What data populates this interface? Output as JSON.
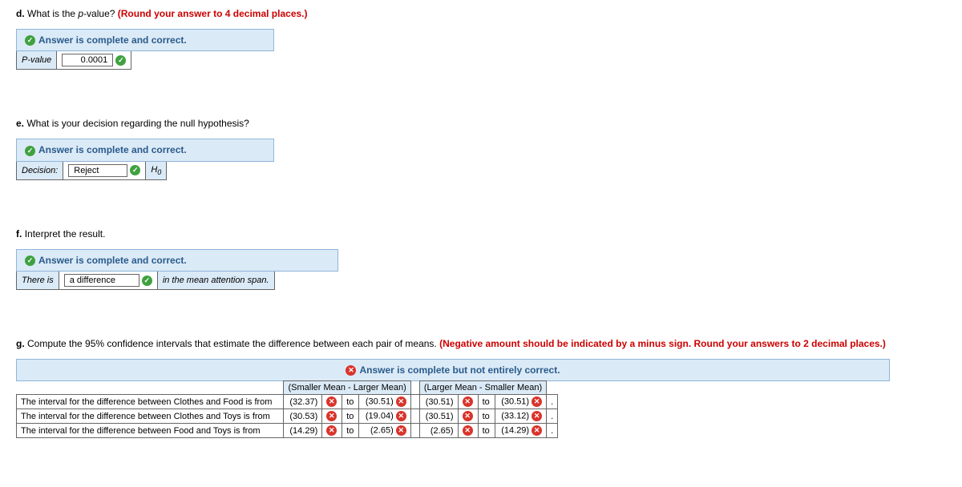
{
  "banners": {
    "correct": "Answer is complete and correct.",
    "partial": "Answer is complete but not entirely correct."
  },
  "d": {
    "letter": "d.",
    "prompt": "What is the ",
    "prompt_em": "p",
    "prompt2": "-value? ",
    "instr": "(Round your answer to 4 decimal places.)",
    "label": "P-value",
    "value": "0.0001"
  },
  "e": {
    "letter": "e.",
    "prompt": "What is your decision regarding the null hypothesis?",
    "label": "Decision:",
    "value": "Reject",
    "post": "H",
    "post_sub": "0"
  },
  "f": {
    "letter": "f.",
    "prompt": "Interpret the result.",
    "pre": "There is",
    "value": "a difference",
    "post": "in the mean attention span."
  },
  "g": {
    "letter": "g.",
    "prompt": "Compute the 95% confidence intervals that estimate the difference between each pair of means. ",
    "instr": "(Negative amount should be indicated by a minus sign. Round your answers to 2 decimal places.)",
    "head1": "(Smaller Mean - Larger Mean)",
    "head2": "(Larger Mean - Smaller Mean)",
    "to": "to",
    "period": ".",
    "rows": [
      {
        "desc": "The interval for the difference between Clothes and Food is from",
        "a": "(32.37)",
        "b": "(30.51)",
        "c": "(30.51)",
        "d": "(30.51)"
      },
      {
        "desc": "The interval for the difference between Clothes and Toys is from",
        "a": "(30.53)",
        "b": "(19.04)",
        "c": "(30.51)",
        "d": "(33.12)"
      },
      {
        "desc": "The interval for the difference between Food and Toys is from",
        "a": "(14.29)",
        "b": "(2.65)",
        "c": "(2.65)",
        "d": "(14.29)"
      }
    ]
  }
}
